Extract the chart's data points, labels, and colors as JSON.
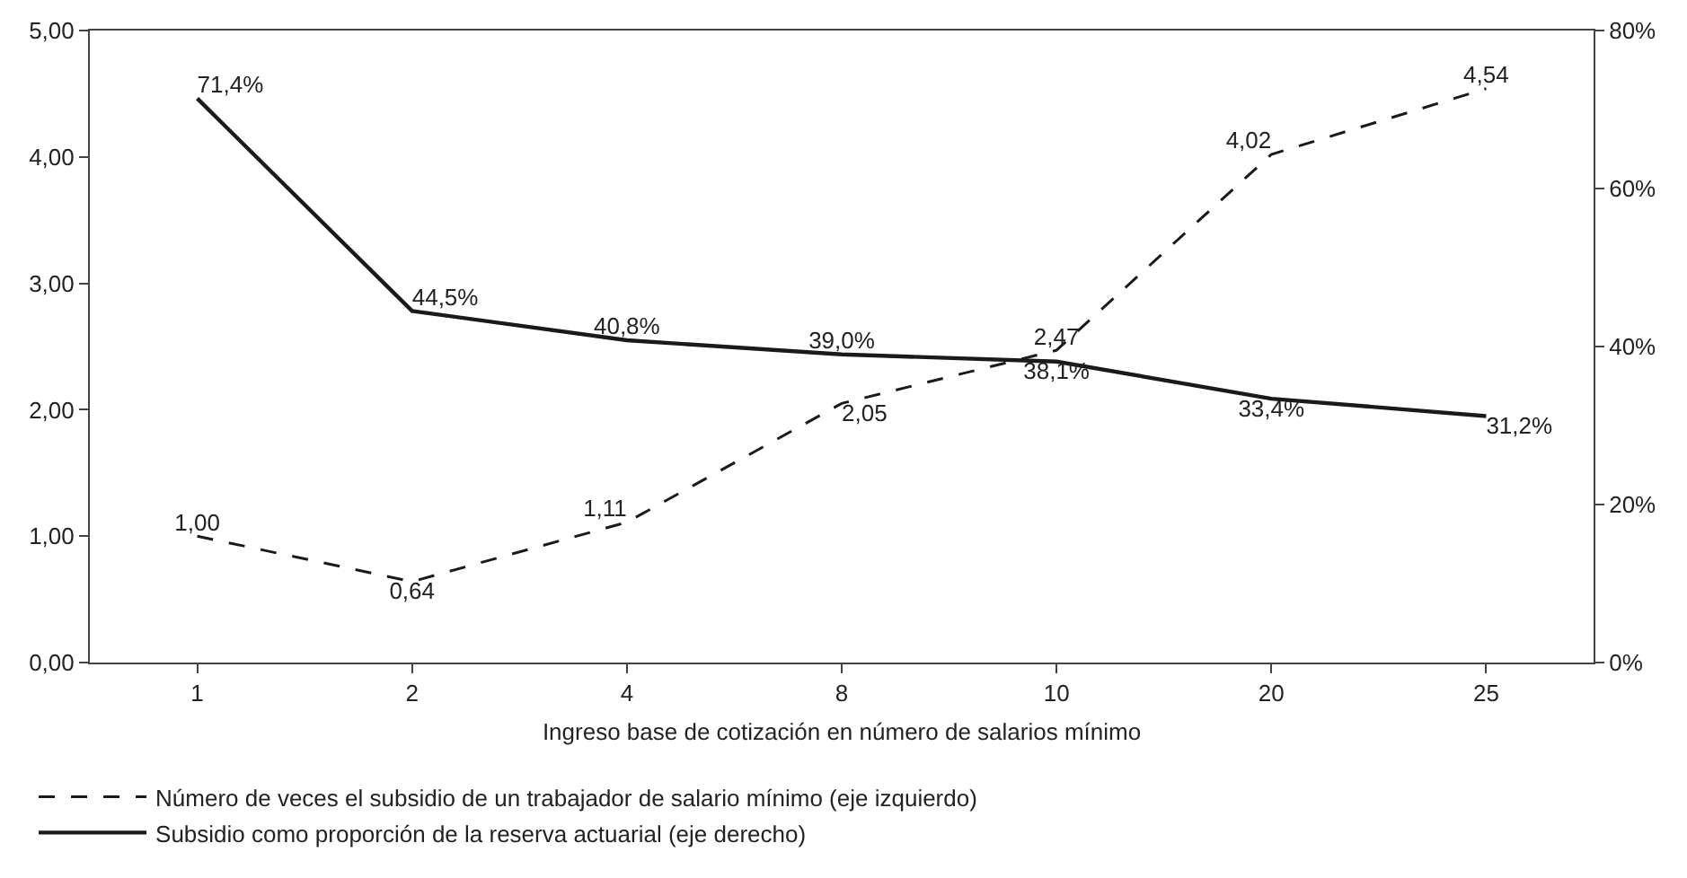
{
  "chart_data": {
    "type": "line",
    "categories": [
      "1",
      "2",
      "4",
      "8",
      "10",
      "20",
      "25"
    ],
    "xlabel": "Ingreso base de cotización en número de salarios mínimo",
    "series": [
      {
        "name": "Número de veces el subsidio de un trabajador de salario mínimo (eje izquierdo)",
        "color": "#1a1a1a",
        "line_style": "dashed",
        "values": [
          1.0,
          0.64,
          1.11,
          2.05,
          2.47,
          4.02,
          4.54
        ],
        "value_labels": [
          "1,00",
          "0,64",
          "1,11",
          "2,05",
          "2,47",
          "4,02",
          "4,54"
        ]
      },
      {
        "name": "Subsidio como proporción de la reserva actuarial (eje derecho)",
        "color": "#1a1a1a",
        "line_style": "solid",
        "axis": "y2",
        "values": [
          71.4,
          44.5,
          40.8,
          39.0,
          38.1,
          33.4,
          31.2
        ],
        "value_labels": [
          "71,4%",
          "44,5%",
          "40,8%",
          "39,0%",
          "38,1%",
          "33,4%",
          "31,2%"
        ]
      }
    ],
    "ylim": [
      0,
      5
    ],
    "yticks": [
      {
        "value": 0,
        "label": "0,00"
      },
      {
        "value": 1,
        "label": "1,00"
      },
      {
        "value": 2,
        "label": "2,00"
      },
      {
        "value": 3,
        "label": "3,00"
      },
      {
        "value": 4,
        "label": "4,00"
      },
      {
        "value": 5,
        "label": "5,00"
      }
    ],
    "y2lim": [
      0,
      80
    ],
    "y2ticks": [
      {
        "value": 0,
        "label": "0%"
      },
      {
        "value": 20,
        "label": "20%"
      },
      {
        "value": 40,
        "label": "40%"
      },
      {
        "value": 60,
        "label": "60%"
      },
      {
        "value": 80,
        "label": "80%"
      }
    ],
    "marker": "none",
    "legend": "bottom"
  }
}
